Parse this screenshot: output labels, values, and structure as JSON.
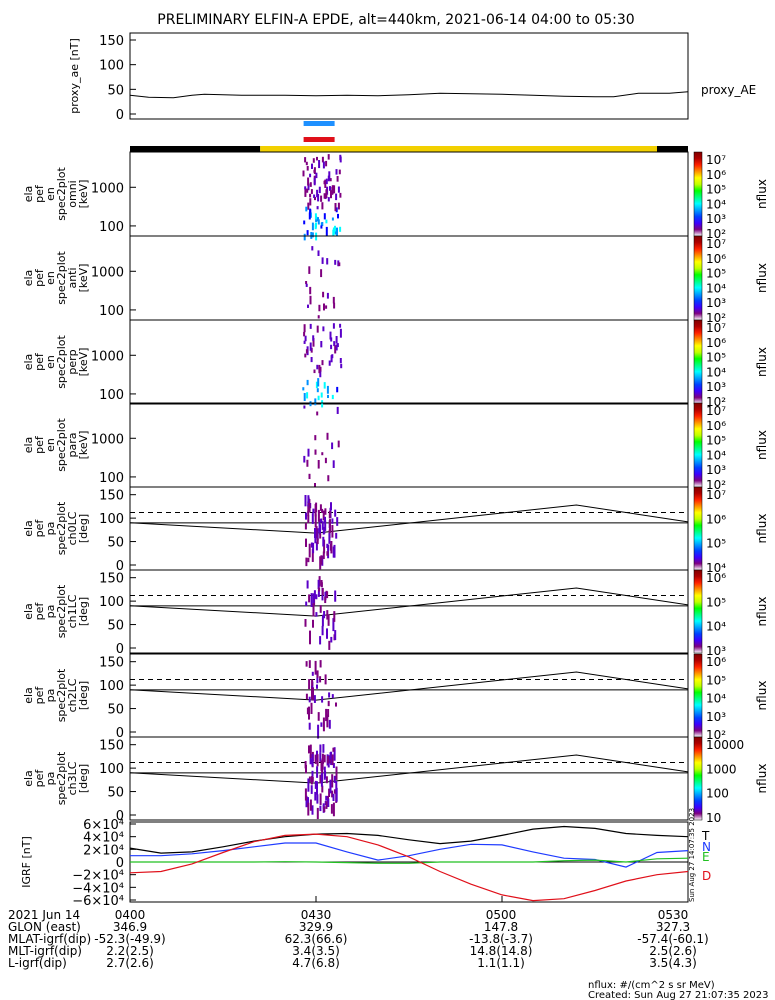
{
  "title": "PRELIMINARY ELFIN-A EPDE, alt=440km, 2021-06-14 04:00 to 05:30",
  "colors": {
    "black": "#000000",
    "blue": "#1f3bff",
    "red": "#e0101a",
    "green": "#22c022",
    "yellow": "#f2d000",
    "sweep_blue": "#1e90ff",
    "sweep_red": "#e0101a"
  },
  "proxy_ae": {
    "ylabel": "proxy_ae [nT]",
    "series_label": "proxy_AE",
    "yticks": [
      "150",
      "100",
      "50",
      "0"
    ],
    "ylim": [
      0,
      150
    ]
  },
  "orbit_bar": {
    "segments": [
      {
        "from": "04:00",
        "to": "04:21",
        "color": "black"
      },
      {
        "from": "04:21",
        "to": "05:25",
        "color": "yellow"
      },
      {
        "from": "05:25",
        "to": "05:30",
        "color": "black"
      }
    ]
  },
  "sweep_marks": {
    "time_range": [
      "04:28",
      "04:33"
    ],
    "colors": [
      "sweep_blue",
      "sweep_red"
    ]
  },
  "energy_panels": [
    {
      "id": "omni",
      "ylabel": [
        "ela",
        "pef",
        "en",
        "spec2plot",
        "omni",
        "[keV]"
      ],
      "cbar_label": "nflux"
    },
    {
      "id": "anti",
      "ylabel": [
        "ela",
        "pef",
        "en",
        "spec2plot",
        "anti",
        "[keV]"
      ],
      "cbar_label": "nflux"
    },
    {
      "id": "perp",
      "ylabel": [
        "ela",
        "pef",
        "en",
        "spec2plot",
        "perp",
        "[keV]"
      ],
      "cbar_label": "nflux"
    },
    {
      "id": "para",
      "ylabel": [
        "ela",
        "pef",
        "en",
        "spec2plot",
        "para",
        "[keV]"
      ],
      "cbar_label": "nflux"
    }
  ],
  "energy_yticks": [
    "1000",
    "100"
  ],
  "energy_cbar_ticks": [
    "10⁷",
    "10⁶",
    "10⁵",
    "10⁴",
    "10³",
    "10²"
  ],
  "pa_panels": [
    {
      "id": "ch0LC",
      "ylabel": [
        "ela",
        "pef",
        "pa",
        "spec2plot",
        "ch0LC",
        "[deg]"
      ],
      "cbar_ticks": [
        "10⁷",
        "10⁶",
        "10⁵",
        "10⁴"
      ],
      "cbar_label": "nflux"
    },
    {
      "id": "ch1LC",
      "ylabel": [
        "ela",
        "pef",
        "pa",
        "spec2plot",
        "ch1LC",
        "[deg]"
      ],
      "cbar_ticks": [
        "10⁶",
        "10⁵",
        "10⁴",
        "10³"
      ],
      "cbar_label": "nflux"
    },
    {
      "id": "ch2LC",
      "ylabel": [
        "ela",
        "pef",
        "pa",
        "spec2plot",
        "ch2LC",
        "[deg]"
      ],
      "cbar_ticks": [
        "10⁶",
        "10⁵",
        "10⁴",
        "10³",
        "10²"
      ],
      "cbar_label": "nflux"
    },
    {
      "id": "ch3LC",
      "ylabel": [
        "ela",
        "pef",
        "pa",
        "spec2plot",
        "ch3LC",
        "[deg]"
      ],
      "cbar_ticks": [
        "10000",
        "1000",
        "100",
        "10"
      ],
      "cbar_label": "nflux"
    }
  ],
  "pa_yticks": [
    "150",
    "100",
    "50",
    "0"
  ],
  "igrf": {
    "ylabel": "IGRF [nT]",
    "yticks": [
      "6×10⁴",
      "4×10⁴",
      "2×10⁴",
      "0",
      "−2×10⁴",
      "−4×10⁴",
      "−6×10⁴"
    ],
    "legend": [
      "T",
      "N",
      "E",
      "D"
    ],
    "side_text": "Sun Aug 27 14:07:35 2023"
  },
  "chart_data": {
    "type": "line",
    "title": "PRELIMINARY ELFIN-A EPDE, alt=440km, 2021-06-14 04:00 to 05:30",
    "x_unit": "minutes after 04:00",
    "xlim": [
      0,
      90
    ],
    "proxy_ae": {
      "x": [
        0,
        3,
        7,
        10,
        12,
        18,
        25,
        30,
        35,
        40,
        45,
        50,
        55,
        60,
        65,
        70,
        75,
        78,
        82,
        87,
        90
      ],
      "values": [
        38,
        34,
        33,
        38,
        40,
        38,
        38,
        37,
        38,
        37,
        39,
        42,
        41,
        40,
        38,
        36,
        35,
        35,
        42,
        42,
        45
      ]
    },
    "pa_curves": {
      "x": [
        0,
        30,
        72,
        90
      ],
      "solid": [
        90,
        68,
        128,
        92
      ],
      "dashed_level": 112,
      "horizontal_level": 90
    },
    "igrf": {
      "ylim": [
        -60000,
        60000
      ],
      "x": [
        0,
        5,
        10,
        15,
        20,
        25,
        30,
        35,
        40,
        45,
        50,
        55,
        60,
        65,
        70,
        75,
        80,
        85,
        90
      ],
      "series": [
        {
          "name": "T",
          "color": "black",
          "values": [
            22000,
            14000,
            16000,
            24000,
            33000,
            40000,
            44000,
            45000,
            42000,
            35000,
            29000,
            33000,
            42000,
            52000,
            56000,
            53000,
            45000,
            42000,
            40000
          ]
        },
        {
          "name": "N",
          "color": "blue",
          "values": [
            10000,
            10000,
            13000,
            18000,
            24000,
            30000,
            30000,
            16000,
            3000,
            10000,
            20000,
            28000,
            27000,
            16000,
            6000,
            4000,
            -8000,
            15000,
            18000
          ]
        },
        {
          "name": "E",
          "color": "green",
          "values": [
            0,
            0,
            0,
            0,
            0,
            500,
            0,
            -1000,
            -2000,
            -2000,
            0,
            0,
            0,
            0,
            2000,
            3000,
            0,
            5000,
            6000
          ]
        },
        {
          "name": "D",
          "color": "red",
          "values": [
            -17000,
            -15000,
            -3000,
            15000,
            32000,
            42000,
            44000,
            40000,
            27000,
            8000,
            -15000,
            -35000,
            -52000,
            -61000,
            -58000,
            -45000,
            -30000,
            -20000,
            -15000
          ]
        }
      ]
    }
  },
  "xaxis": {
    "ticks": [
      "0400",
      "0430",
      "0500",
      "0530"
    ],
    "rows": [
      {
        "label": "2021 Jun 14",
        "values": [
          "",
          "",
          "",
          ""
        ]
      },
      {
        "label": "GLON (east)",
        "values": [
          "346.9",
          "329.9",
          "147.8",
          "327.3"
        ]
      },
      {
        "label": "MLAT-igrf(dip)",
        "values": [
          "-52.3(-49.9)",
          "62.3(66.6)",
          "-13.8(-3.7)",
          "-57.4(-60.1)"
        ]
      },
      {
        "label": "MLT-igrf(dip)",
        "values": [
          "2.2(2.5)",
          "3.4(3.5)",
          "14.8(14.8)",
          "2.5(2.6)"
        ]
      },
      {
        "label": "L-igrf(dip)",
        "values": [
          "2.7(2.6)",
          "4.7(6.8)",
          "1.1(1.1)",
          "3.5(4.3)"
        ]
      }
    ]
  },
  "footer": {
    "units": "nflux: #/(cm^2 s sr MeV)",
    "created": "Created: Sun Aug 27 21:07:35 2023"
  }
}
